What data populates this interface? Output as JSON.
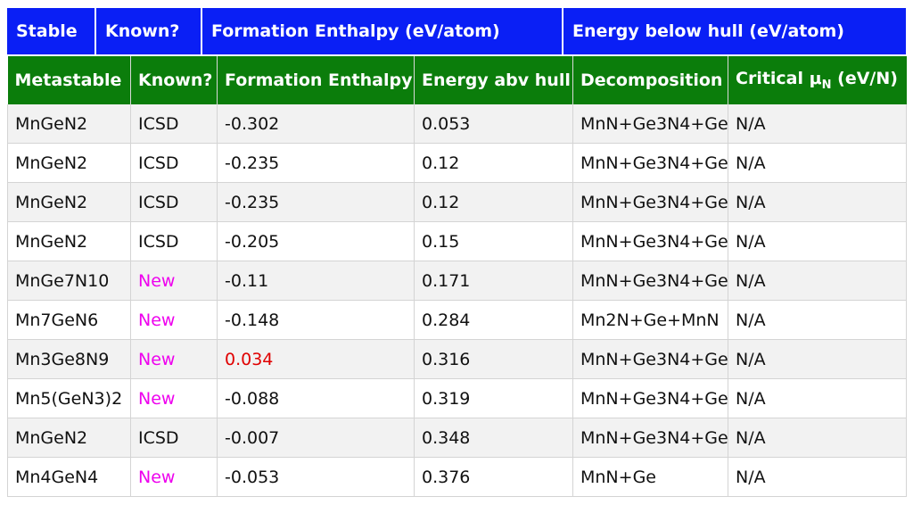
{
  "stable_header": {
    "stable": "Stable",
    "known": "Known?",
    "formation": "Formation Enthalpy (eV/atom)",
    "energy": "Energy below hull (eV/atom)"
  },
  "meta_header": {
    "metastable": "Metastable",
    "known": "Known?",
    "formation": "Formation Enthalpy",
    "energy": "Energy abv hull",
    "decomposition": "Decomposition",
    "critical_prefix": "Critical μ",
    "critical_sub": "N",
    "critical_suffix": " (eV/N)"
  },
  "colors": {
    "stable_bg": "#0a1ff5",
    "meta_bg": "#0b7d0b",
    "new_text": "#ee00ee",
    "highlight_text": "#e00000"
  },
  "rows": [
    {
      "compound": "MnGeN2",
      "known": "ICSD",
      "formation": "-0.302",
      "energy": "0.053",
      "decomposition": "MnN+Ge3N4+Ge",
      "critical": "N/A"
    },
    {
      "compound": "MnGeN2",
      "known": "ICSD",
      "formation": "-0.235",
      "energy": "0.12",
      "decomposition": "MnN+Ge3N4+Ge",
      "critical": "N/A"
    },
    {
      "compound": "MnGeN2",
      "known": "ICSD",
      "formation": "-0.235",
      "energy": "0.12",
      "decomposition": "MnN+Ge3N4+Ge",
      "critical": "N/A"
    },
    {
      "compound": "MnGeN2",
      "known": "ICSD",
      "formation": "-0.205",
      "energy": "0.15",
      "decomposition": "MnN+Ge3N4+Ge",
      "critical": "N/A"
    },
    {
      "compound": "MnGe7N10",
      "known": "New",
      "formation": "-0.11",
      "energy": "0.171",
      "decomposition": "MnN+Ge3N4+Ge",
      "critical": "N/A"
    },
    {
      "compound": "Mn7GeN6",
      "known": "New",
      "formation": "-0.148",
      "energy": "0.284",
      "decomposition": "Mn2N+Ge+MnN",
      "critical": "N/A"
    },
    {
      "compound": "Mn3Ge8N9",
      "known": "New",
      "formation": "0.034",
      "energy": "0.316",
      "decomposition": "MnN+Ge3N4+Ge",
      "critical": "N/A"
    },
    {
      "compound": "Mn5(GeN3)2",
      "known": "New",
      "formation": "-0.088",
      "energy": "0.319",
      "decomposition": "MnN+Ge3N4+Ge",
      "critical": "N/A"
    },
    {
      "compound": "MnGeN2",
      "known": "ICSD",
      "formation": "-0.007",
      "energy": "0.348",
      "decomposition": "MnN+Ge3N4+Ge",
      "critical": "N/A"
    },
    {
      "compound": "Mn4GeN4",
      "known": "New",
      "formation": "-0.053",
      "energy": "0.376",
      "decomposition": "MnN+Ge",
      "critical": "N/A"
    }
  ]
}
